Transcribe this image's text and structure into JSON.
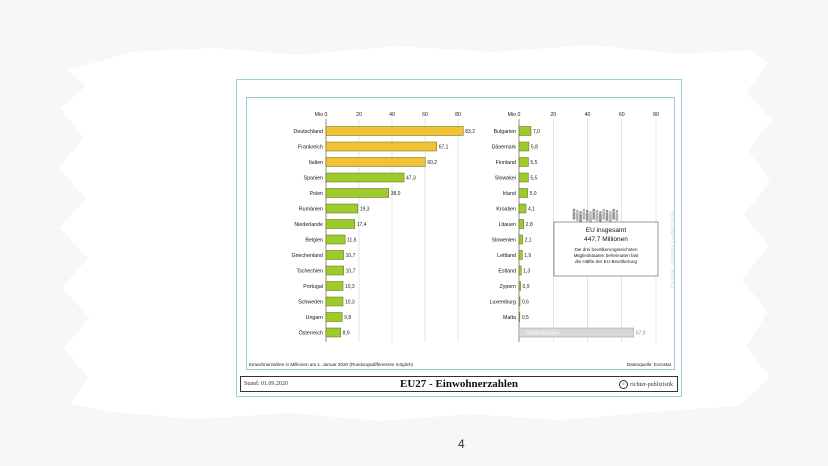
{
  "page": {
    "number": "4"
  },
  "info_box": {
    "title": "EU insgesamt",
    "total": "447,7 Millionen",
    "note_line1": "Die drei bevölkerungsreichsten",
    "note_line2": "Mitgliedstaaten beheimaten fast",
    "note_line3": "die Hälfte der EU-Bevölkerung"
  },
  "footer": {
    "note": "Einwohnerzahlen in Millionen am 1. Januar 2020 (Rundungsdifferenzen möglich)",
    "source": "Datenquelle: Eurostat",
    "date": "Stand: 01.09.2020",
    "title": "EU27 - Einwohnerzahlen",
    "publisher": "richter-publizistik",
    "copyright_symbol": "c"
  },
  "watermark": "Grafik: richter-publizistik",
  "colors": {
    "big": "#f1c233",
    "small": "#9ccb2e",
    "frame": "#9bd0dc",
    "reference": "#d8d8d8"
  },
  "chart_data": [
    {
      "type": "bar",
      "orientation": "horizontal",
      "unit_label": "Mio",
      "xlim": [
        0,
        80
      ],
      "ticks": [
        0,
        20,
        40,
        60,
        80
      ],
      "grid": true,
      "categories": [
        "Deutschland",
        "Frankreich",
        "Italien",
        "Spanien",
        "Polen",
        "Rumänien",
        "Niederlande",
        "Belgien",
        "Griechenland",
        "Tschechien",
        "Portugal",
        "Schweden",
        "Ungarn",
        "Österreich"
      ],
      "values": [
        83.2,
        67.1,
        60.2,
        47.3,
        38.0,
        19.3,
        17.4,
        11.6,
        10.7,
        10.7,
        10.3,
        10.3,
        9.8,
        8.9
      ],
      "labels": [
        "83,2",
        "67,1",
        "60,2",
        "47,3",
        "38,0",
        "19,3",
        "17,4",
        "11,6",
        "10,7",
        "10,7",
        "10,3",
        "10,3",
        "9,8",
        "8,9"
      ],
      "highlight_top": 3
    },
    {
      "type": "bar",
      "orientation": "horizontal",
      "unit_label": "Mio",
      "xlim": [
        0,
        80
      ],
      "ticks": [
        0,
        20,
        40,
        60,
        80
      ],
      "grid": true,
      "categories": [
        "Bulgarien",
        "Dänemark",
        "Finnland",
        "Slowakei",
        "Irland",
        "Kroatien",
        "Litauen",
        "Slowenien",
        "Lettland",
        "Estland",
        "Zypern",
        "Luxemburg",
        "Malta"
      ],
      "values": [
        7.0,
        5.8,
        5.5,
        5.5,
        5.0,
        4.1,
        2.8,
        2.1,
        1.9,
        1.3,
        0.9,
        0.6,
        0.5
      ],
      "labels": [
        "7,0",
        "5,8",
        "5,5",
        "5,5",
        "5,0",
        "4,1",
        "2,8",
        "2,1",
        "1,9",
        "1,3",
        "0,9",
        "0,6",
        "0,5"
      ],
      "reference": {
        "label": "Großbritannien",
        "value": 67.0,
        "value_label": "67,0"
      }
    }
  ]
}
